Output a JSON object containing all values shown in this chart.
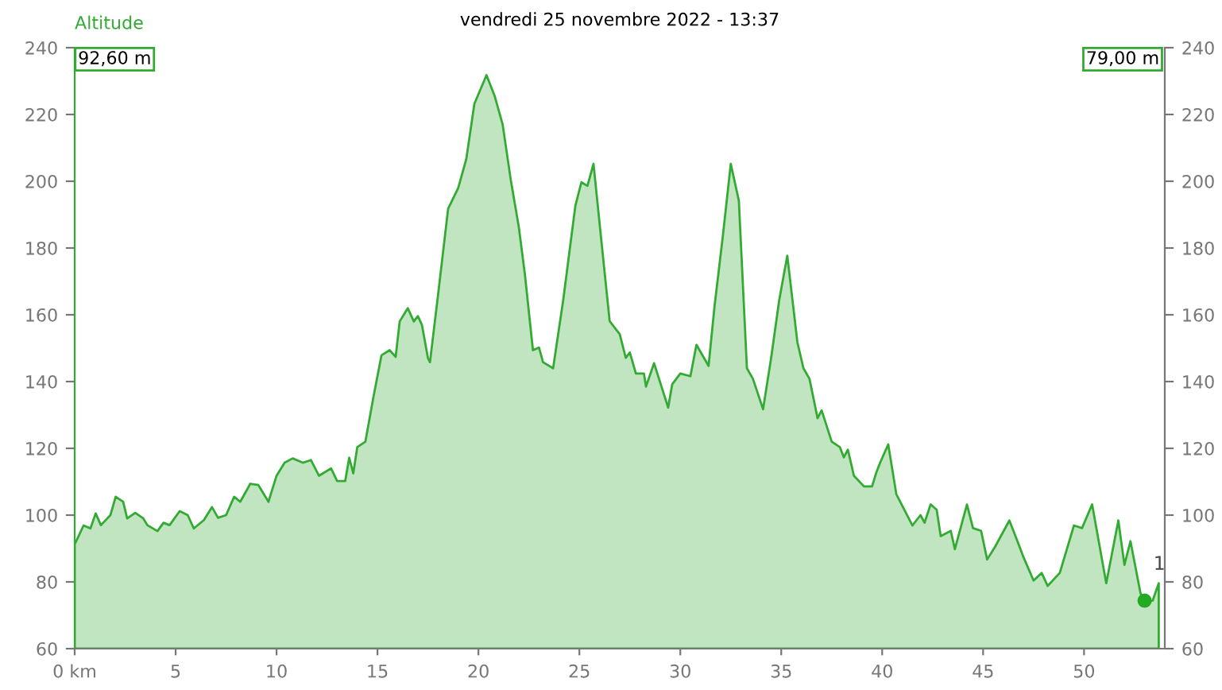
{
  "chart_data": {
    "type": "area",
    "title": "vendredi 25 novembre 2022 - 13:37",
    "ylabel": "Altitude",
    "annotations": [
      "92,60 m",
      "79,00 m",
      {
        "text": "1",
        "x": 53.0,
        "y": 74.4
      }
    ],
    "xlim": [
      0,
      54
    ],
    "xticks": [
      {
        "value": 0,
        "label": "0 km"
      },
      5,
      10,
      15,
      20,
      25,
      30,
      35,
      40,
      45,
      50
    ],
    "ylim": [
      60,
      240
    ],
    "yticks": [
      60,
      80,
      100,
      120,
      140,
      160,
      180,
      200,
      220,
      240
    ],
    "y2lim": [
      60,
      240
    ],
    "y2ticks": [
      60,
      80,
      100,
      120,
      140,
      160,
      180,
      200,
      220,
      240
    ],
    "grid": false,
    "legend": false,
    "series": [
      {
        "color": "#33aa33",
        "x": [
          0,
          0.13,
          0.44,
          0.78,
          1.04,
          1.3,
          1.77,
          2.03,
          2.4,
          2.6,
          3.0,
          3.4,
          3.6,
          4.1,
          4.4,
          4.7,
          5.2,
          5.6,
          5.9,
          6.4,
          6.8,
          7.1,
          7.5,
          7.9,
          8.2,
          8.7,
          9.1,
          9.6,
          10.0,
          10.4,
          10.8,
          11.3,
          11.7,
          12.1,
          12.7,
          13.0,
          13.4,
          13.6,
          13.8,
          14.0,
          14.4,
          14.8,
          15.2,
          15.6,
          15.9,
          16.1,
          16.5,
          16.8,
          17.0,
          17.2,
          17.5,
          17.6,
          18.0,
          18.5,
          19.0,
          19.4,
          19.8,
          20.4,
          20.8,
          21.2,
          21.6,
          22.0,
          22.3,
          22.7,
          23.0,
          23.2,
          23.7,
          24.2,
          24.8,
          25.1,
          25.4,
          25.7,
          26.1,
          26.5,
          27.0,
          27.3,
          27.5,
          27.8,
          28.2,
          28.3,
          28.7,
          29.4,
          29.6,
          30.0,
          30.5,
          30.8,
          31.4,
          31.7,
          32.1,
          32.5,
          32.9,
          33.3,
          33.6,
          34.1,
          34.5,
          34.9,
          35.3,
          35.8,
          36.1,
          36.4,
          36.8,
          37.0,
          37.5,
          37.9,
          38.1,
          38.3,
          38.6,
          39.1,
          39.5,
          39.7,
          39.9,
          40.3,
          40.7,
          41.5,
          41.9,
          42.1,
          42.4,
          42.7,
          42.9,
          43.4,
          43.6,
          44.2,
          44.5,
          44.9,
          45.2,
          45.6,
          46.3,
          46.7,
          47.0,
          47.5,
          47.9,
          48.2,
          48.8,
          49.5,
          49.9,
          50.4,
          51.1,
          51.7,
          52.0,
          52.3,
          52.8,
          53.0,
          53.4,
          53.7
        ],
        "values": [
          91.3,
          92.9,
          96.9,
          96,
          100.5,
          97,
          100,
          105.5,
          104,
          99,
          100.7,
          99,
          97,
          95.2,
          97.7,
          97,
          101.2,
          100,
          96,
          98.5,
          102.4,
          99.2,
          100,
          105.5,
          104,
          109.4,
          109,
          104,
          111.8,
          115.7,
          117,
          115.7,
          116.5,
          111.8,
          114,
          110.2,
          110.2,
          117.2,
          112.5,
          120.4,
          122,
          135.4,
          147.9,
          149.4,
          147.4,
          158,
          162,
          158,
          159.6,
          157,
          147,
          145.8,
          166,
          191.8,
          198,
          206.7,
          223.2,
          231.8,
          225.6,
          217,
          200.5,
          186.3,
          172.2,
          149.4,
          150.2,
          145.8,
          144,
          164.4,
          192.6,
          199.7,
          198.6,
          205.2,
          181.6,
          158.1,
          154.2,
          147.1,
          148.7,
          142.4,
          142.4,
          138.5,
          145.5,
          132.2,
          139.2,
          142.4,
          141.6,
          151,
          144.7,
          162.8,
          183.2,
          205.2,
          194.2,
          144,
          140.8,
          131.7,
          147.1,
          164.4,
          177.7,
          151.8,
          144,
          140.8,
          129,
          131.4,
          122,
          120.4,
          117.3,
          119.6,
          111.8,
          108.6,
          108.6,
          112.6,
          115.7,
          121.2,
          106.3,
          96.9,
          100,
          97.7,
          103.2,
          101.6,
          93.7,
          95.3,
          89.8,
          103.2,
          96.1,
          95.3,
          86.7,
          90.6,
          98.4,
          92.2,
          87.4,
          80.4,
          82.7,
          78.8,
          82.7,
          96.9,
          96.1,
          103.2,
          79.6,
          98.4,
          85.1,
          92.2,
          76.5,
          74.1,
          74.4,
          79.6
        ]
      },
      {
        "type": "scatter",
        "color": "#22aa22",
        "marker": "circle",
        "x": [
          53.0
        ],
        "values": [
          74.4
        ]
      }
    ]
  }
}
